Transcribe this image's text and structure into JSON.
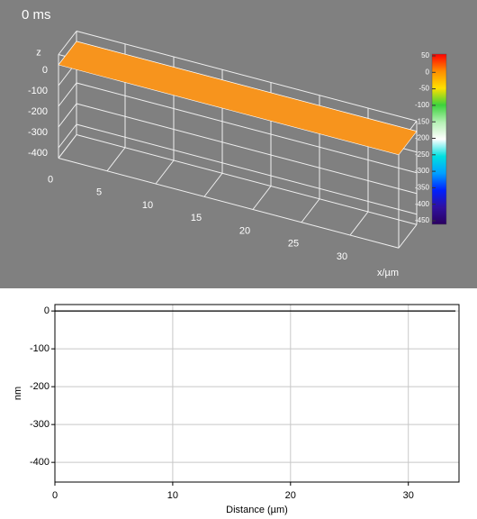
{
  "chart_data": [
    {
      "type": "surface3d",
      "title": "0 ms",
      "zlabel": "z",
      "xlabel": "x/µm",
      "x": [
        0,
        35
      ],
      "values": [
        0,
        0
      ],
      "color": "#f7941d",
      "xlim": [
        0,
        35
      ],
      "xticks": [
        0,
        5,
        10,
        15,
        20,
        25,
        30
      ],
      "zlim": [
        -450,
        50
      ],
      "zticks": [
        0,
        -100,
        -200,
        -300,
        -400
      ],
      "grid": true,
      "colorbar": {
        "ticks": [
          50,
          0,
          -50,
          -100,
          -150,
          -200,
          -250,
          -300,
          -350,
          -400,
          -450
        ],
        "colors": [
          "#ff0000",
          "#ff8c00",
          "#ffe000",
          "#3cd23c",
          "#b4f0b4",
          "#ffffff",
          "#00e0e0",
          "#00a0ff",
          "#0020ff",
          "#3010a0",
          "#2a0060"
        ]
      }
    },
    {
      "type": "line",
      "xlabel": "Distance (µm)",
      "ylabel": "nm",
      "x": [
        0,
        34
      ],
      "values": [
        0,
        0
      ],
      "color": "#000000",
      "xlim": [
        0,
        34.3
      ],
      "ylim": [
        -452,
        17
      ],
      "xticks": [
        0,
        10,
        20,
        30
      ],
      "yticks": [
        0,
        -100,
        -200,
        -300,
        -400
      ],
      "grid": true
    }
  ]
}
